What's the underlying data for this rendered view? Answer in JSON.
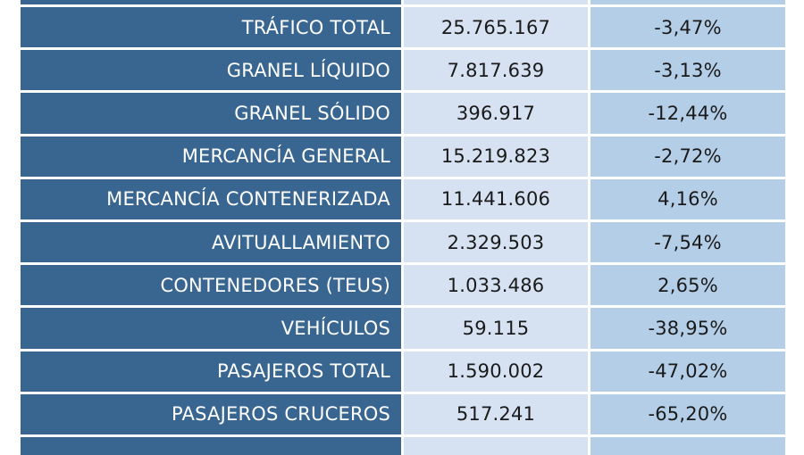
{
  "table": {
    "rows": [
      {
        "label": "TRÁFICO TOTAL",
        "value": "25.765.167",
        "change": "-3,47%"
      },
      {
        "label": "GRANEL LÍQUIDO",
        "value": "7.817.639",
        "change": "-3,13%"
      },
      {
        "label": "GRANEL SÓLIDO",
        "value": "396.917",
        "change": "-12,44%"
      },
      {
        "label": "MERCANCÍA GENERAL",
        "value": "15.219.823",
        "change": "-2,72%"
      },
      {
        "label": "MERCANCÍA CONTENERIZADA",
        "value": "11.441.606",
        "change": "4,16%"
      },
      {
        "label": "AVITUALLAMIENTO",
        "value": "2.329.503",
        "change": "-7,54%"
      },
      {
        "label": "CONTENEDORES (TEUS)",
        "value": "1.033.486",
        "change": "2,65%"
      },
      {
        "label": "VEHÍCULOS",
        "value": "59.115",
        "change": "-38,95%"
      },
      {
        "label": "PASAJEROS TOTAL",
        "value": "1.590.002",
        "change": "-47,02%"
      },
      {
        "label": "PASAJEROS CRUCEROS",
        "value": "517.241",
        "change": "-65,20%"
      }
    ]
  },
  "colors": {
    "label_background": "#396690",
    "value_background": "#d6e2f2",
    "change_background": "#b4cee8"
  }
}
